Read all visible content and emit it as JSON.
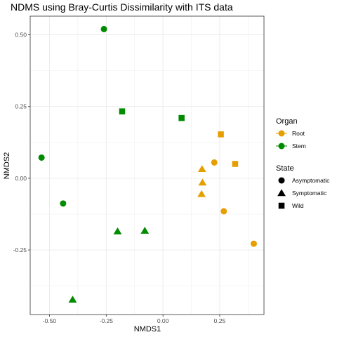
{
  "chart_data": {
    "type": "scatter",
    "title": "NDMS using Bray-Curtis Dissimilarity with ITS data",
    "xlabel": "NMDS1",
    "ylabel": "NMDS2",
    "xlim": [
      -0.585,
      0.445
    ],
    "ylim": [
      -0.475,
      0.565
    ],
    "x_ticks": [
      {
        "value": -0.5,
        "label": "-0.50"
      },
      {
        "value": -0.25,
        "label": "-0.25"
      },
      {
        "value": 0,
        "label": "0.00"
      },
      {
        "value": 0.25,
        "label": "0.25"
      }
    ],
    "y_ticks": [
      {
        "value": 0.5,
        "label": "0.50"
      },
      {
        "value": 0.25,
        "label": "0.25"
      },
      {
        "value": 0,
        "label": "0.00"
      },
      {
        "value": -0.25,
        "label": "-0.25"
      }
    ],
    "grid": true,
    "legend_placement": "right",
    "colors": {
      "Root": "#e69f00",
      "Stem": "#008b00"
    },
    "legends": [
      {
        "title": "Organ",
        "kind": "color",
        "entries": [
          "Root",
          "Stem"
        ]
      },
      {
        "title": "State",
        "kind": "shape",
        "entries": [
          "Asymptomatic",
          "Symptomatic",
          "Wild"
        ]
      }
    ],
    "points": [
      {
        "x": -0.26,
        "y": 0.52,
        "organ": "Stem",
        "state": "Asymptomatic"
      },
      {
        "x": -0.535,
        "y": 0.072,
        "organ": "Stem",
        "state": "Asymptomatic"
      },
      {
        "x": -0.44,
        "y": -0.088,
        "organ": "Stem",
        "state": "Asymptomatic"
      },
      {
        "x": -0.18,
        "y": 0.233,
        "organ": "Stem",
        "state": "Wild"
      },
      {
        "x": 0.082,
        "y": 0.21,
        "organ": "Stem",
        "state": "Wild"
      },
      {
        "x": -0.2,
        "y": -0.185,
        "organ": "Stem",
        "state": "Symptomatic"
      },
      {
        "x": -0.08,
        "y": -0.183,
        "organ": "Stem",
        "state": "Symptomatic"
      },
      {
        "x": -0.398,
        "y": -0.423,
        "organ": "Stem",
        "state": "Symptomatic"
      },
      {
        "x": 0.255,
        "y": 0.153,
        "organ": "Root",
        "state": "Wild"
      },
      {
        "x": 0.318,
        "y": 0.05,
        "organ": "Root",
        "state": "Wild"
      },
      {
        "x": 0.226,
        "y": 0.055,
        "organ": "Root",
        "state": "Asymptomatic"
      },
      {
        "x": 0.268,
        "y": -0.115,
        "organ": "Root",
        "state": "Asymptomatic"
      },
      {
        "x": 0.4,
        "y": -0.228,
        "organ": "Root",
        "state": "Asymptomatic"
      },
      {
        "x": 0.172,
        "y": 0.032,
        "organ": "Root",
        "state": "Symptomatic"
      },
      {
        "x": 0.174,
        "y": -0.015,
        "organ": "Root",
        "state": "Symptomatic"
      },
      {
        "x": 0.17,
        "y": -0.055,
        "organ": "Root",
        "state": "Symptomatic"
      }
    ]
  }
}
